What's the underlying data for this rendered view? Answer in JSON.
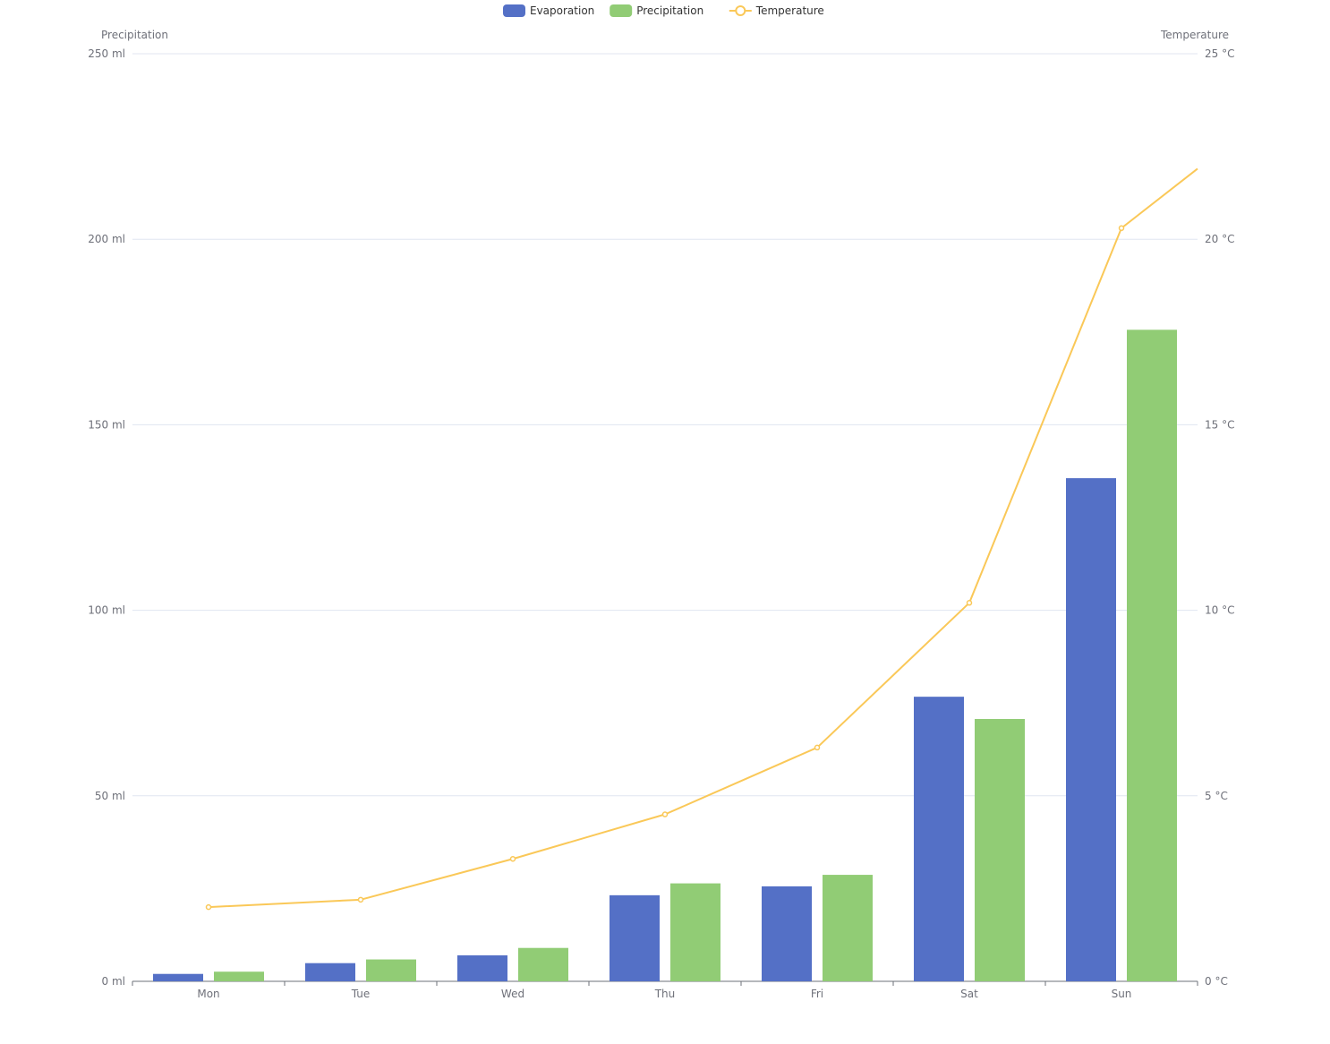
{
  "chart_data": {
    "type": "bar",
    "categories": [
      "Mon",
      "Tue",
      "Wed",
      "Thu",
      "Fri",
      "Sat",
      "Sun"
    ],
    "series": [
      {
        "name": "Evaporation",
        "type": "bar",
        "axis": "left",
        "color": "#5470c6",
        "values": [
          2.0,
          4.9,
          7.0,
          23.2,
          25.6,
          76.7,
          135.6
        ]
      },
      {
        "name": "Precipitation",
        "type": "bar",
        "axis": "left",
        "color": "#91cc75",
        "values": [
          2.6,
          5.9,
          9.0,
          26.4,
          28.7,
          70.7,
          175.6
        ]
      },
      {
        "name": "Temperature",
        "type": "line",
        "axis": "right",
        "color": "#fac858",
        "values": [
          2.0,
          2.2,
          3.3,
          4.5,
          6.3,
          10.2,
          20.3
        ],
        "extends_to": 21.9
      }
    ],
    "y_left": {
      "name": "Precipitation",
      "min": 0,
      "max": 250,
      "interval": 50,
      "unit": " ml"
    },
    "y_right": {
      "name": "Temperature",
      "min": 0,
      "max": 25,
      "interval": 5,
      "unit": " °C"
    },
    "grid": true,
    "legend_position": "top-center"
  }
}
